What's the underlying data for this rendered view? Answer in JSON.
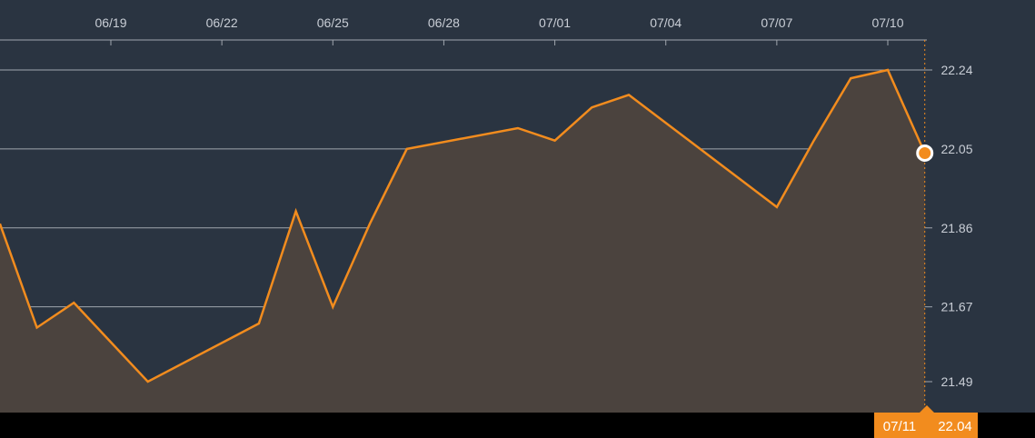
{
  "chart_data": {
    "type": "area",
    "title": "",
    "xlabel": "",
    "ylabel": "",
    "x_ticks": [
      "06/19",
      "06/22",
      "06/25",
      "06/28",
      "07/01",
      "07/04",
      "07/07",
      "07/10"
    ],
    "y_ticks": [
      "22.24",
      "22.05",
      "21.86",
      "21.67",
      "21.49"
    ],
    "ylim": [
      21.49,
      22.24
    ],
    "grid": true,
    "series": [
      {
        "x": [
          "06/16",
          "06/17",
          "06/18",
          "06/20",
          "06/23",
          "06/24",
          "06/25",
          "06/26",
          "06/27",
          "06/30",
          "07/01",
          "07/02",
          "07/03",
          "07/07",
          "07/08",
          "07/09",
          "07/10",
          "07/11"
        ],
        "values": [
          21.87,
          21.62,
          21.68,
          21.49,
          21.63,
          21.9,
          21.67,
          21.87,
          22.05,
          22.1,
          22.07,
          22.15,
          22.18,
          21.91,
          22.07,
          22.22,
          22.24,
          22.04
        ]
      }
    ],
    "colors": {
      "line": "#f28c1e",
      "fill": "#4b433e",
      "background": "#2a3441",
      "grid": "#a0a6ae",
      "footer": "#000000",
      "badge": "#f28c1e"
    },
    "current": {
      "date": "07/11",
      "value": "22.04"
    }
  }
}
